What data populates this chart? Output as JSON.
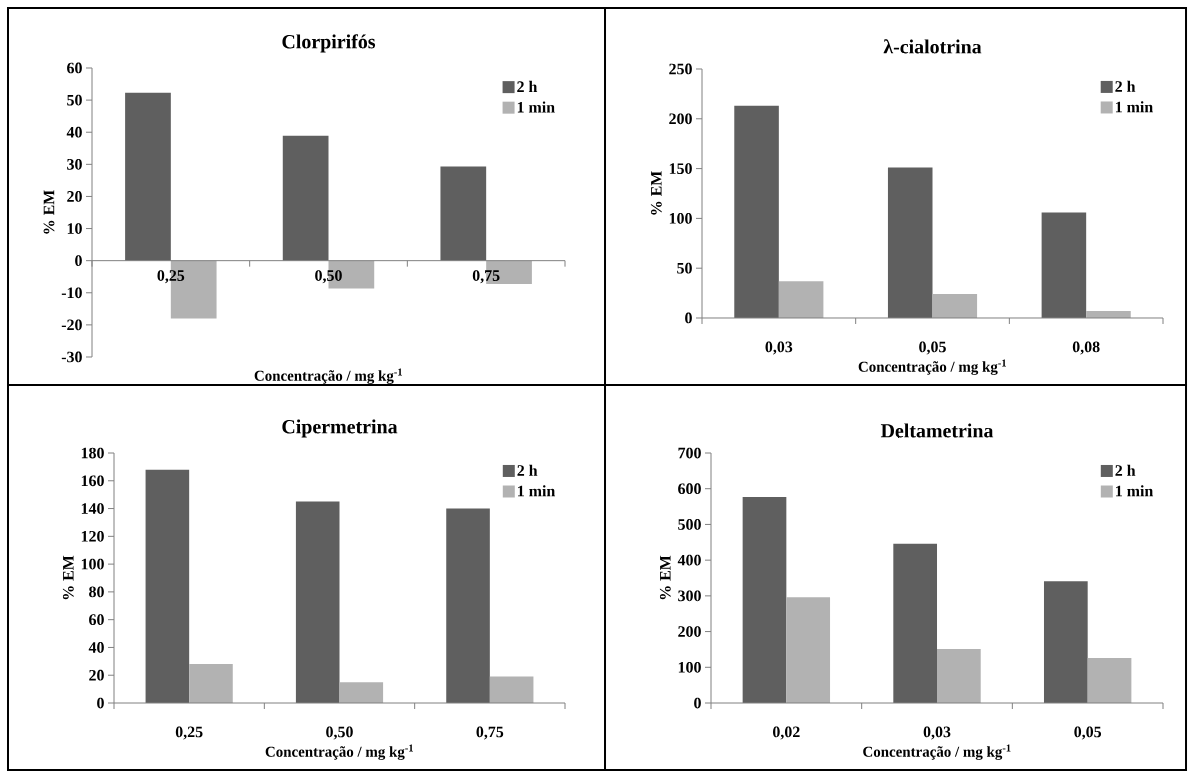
{
  "chart_data": [
    {
      "type": "bar",
      "title": "Clorpirifós",
      "xlabel": "Concentração / mg kg$^{-1}$",
      "ylabel": "% EM",
      "categories": [
        "0,25",
        "0,50",
        "0,75"
      ],
      "series": [
        {
          "name": "2 h",
          "color": "#5f5f5f",
          "values": [
            52.3,
            38.9,
            29.3
          ]
        },
        {
          "name": "1 min",
          "color": "#b2b2b2",
          "values": [
            -18.0,
            -8.7,
            -7.3
          ]
        }
      ],
      "ylim": [
        -30,
        60
      ],
      "yticks": [
        -30,
        -20,
        -10,
        0,
        10,
        20,
        30,
        40,
        50,
        60
      ],
      "legend": "top right"
    },
    {
      "type": "bar",
      "title": "λ-cialotrina",
      "xlabel": "Concentração / mg kg$^{-1}$",
      "ylabel": "% EM",
      "categories": [
        "0,03",
        "0,05",
        "0,08"
      ],
      "series": [
        {
          "name": "2 h",
          "color": "#5f5f5f",
          "values": [
            213,
            151,
            106
          ]
        },
        {
          "name": "1 min",
          "color": "#b2b2b2",
          "values": [
            37,
            24,
            7
          ]
        }
      ],
      "ylim": [
        0,
        250
      ],
      "yticks": [
        0,
        50,
        100,
        150,
        200,
        250
      ],
      "legend": "top right"
    },
    {
      "type": "bar",
      "title": "Cipermetrina",
      "xlabel": "Concentração / mg kg$^{-1}$",
      "ylabel": "% EM",
      "categories": [
        "0,25",
        "0,50",
        "0,75"
      ],
      "series": [
        {
          "name": "2 h",
          "color": "#5f5f5f",
          "values": [
            168,
            145,
            140
          ]
        },
        {
          "name": "1 min",
          "color": "#b2b2b2",
          "values": [
            28,
            15,
            19
          ]
        }
      ],
      "ylim": [
        0,
        180
      ],
      "yticks": [
        0,
        20,
        40,
        60,
        80,
        100,
        120,
        140,
        160,
        180
      ],
      "legend": "top right"
    },
    {
      "type": "bar",
      "title": "Deltametrina",
      "xlabel": "Concentração / mg kg$^{-1}$",
      "ylabel": "% EM",
      "categories": [
        "0,02",
        "0,03",
        "0,05"
      ],
      "series": [
        {
          "name": "2 h",
          "color": "#5f5f5f",
          "values": [
            577,
            446,
            341
          ]
        },
        {
          "name": "1 min",
          "color": "#b2b2b2",
          "values": [
            296,
            151,
            126
          ]
        }
      ],
      "ylim": [
        0,
        700
      ],
      "yticks": [
        0,
        100,
        200,
        300,
        400,
        500,
        600,
        700
      ],
      "legend": "top right"
    }
  ]
}
